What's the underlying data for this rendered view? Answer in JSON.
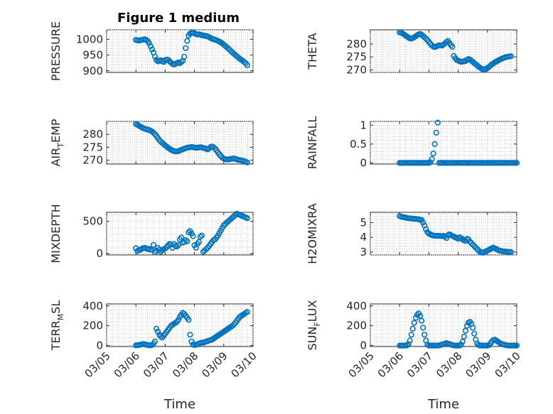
{
  "figure_title": "Figure 1 medium",
  "x_axis": {
    "label": "Time",
    "ticks": [
      "03/05",
      "03/06",
      "03/07",
      "03/08",
      "03/09",
      "03/10"
    ],
    "range": [
      0,
      5
    ]
  },
  "colors": {
    "marker": "#0072BD",
    "axis": "#262626",
    "grid": "#c8c8c8"
  },
  "chart_data": [
    {
      "type": "scatter",
      "title": "Figure 1 medium",
      "ylabel": "PRESSURE",
      "ylim": [
        895,
        1030
      ],
      "yticks": [
        900,
        950,
        1000
      ],
      "xlabel": "",
      "x": [
        1,
        1.05,
        1.1,
        1.15,
        1.2,
        1.25,
        1.3,
        1.35,
        1.4,
        1.45,
        1.5,
        1.55,
        1.6,
        1.65,
        1.7,
        1.75,
        1.8,
        1.85,
        1.9,
        1.95,
        2,
        2.05,
        2.1,
        2.15,
        2.2,
        2.25,
        2.3,
        2.35,
        2.4,
        2.45,
        2.5,
        2.55,
        2.6,
        2.65,
        2.7,
        2.75,
        2.8,
        2.85,
        2.9,
        2.95,
        3,
        3.05,
        3.1,
        3.15,
        3.2,
        3.25,
        3.3,
        3.35,
        3.4,
        3.45,
        3.5,
        3.55,
        3.6,
        3.65,
        3.7,
        3.75,
        3.8,
        3.85,
        3.9,
        3.95,
        4,
        4.05,
        4.1,
        4.15,
        4.2,
        4.25,
        4.3,
        4.35,
        4.4,
        4.45,
        4.5,
        4.55,
        4.6,
        4.65,
        4.7,
        4.75,
        4.8
      ],
      "values": [
        998,
        997,
        996,
        997,
        998,
        999,
        1000,
        998,
        995,
        988,
        978,
        968,
        958,
        945,
        935,
        930,
        932,
        934,
        930,
        928,
        934,
        936,
        935,
        930,
        926,
        922,
        920,
        922,
        925,
        927,
        924,
        928,
        932,
        945,
        972,
        995,
        1012,
        1018,
        1020,
        1021,
        1019,
        1017,
        1015,
        1016,
        1015,
        1013,
        1012,
        1011,
        1010,
        1009,
        1007,
        1004,
        1002,
        1000,
        999,
        997,
        995,
        993,
        990,
        987,
        983,
        979,
        975,
        971,
        967,
        962,
        958,
        954,
        950,
        946,
        942,
        938,
        935,
        932,
        928,
        924,
        918
      ]
    },
    {
      "type": "scatter",
      "ylabel": "THETA",
      "ylim": [
        269,
        285.5
      ],
      "yticks": [
        270,
        275,
        280
      ],
      "xlabel": "",
      "x": [
        1,
        1.05,
        1.1,
        1.15,
        1.2,
        1.25,
        1.3,
        1.35,
        1.4,
        1.45,
        1.5,
        1.55,
        1.6,
        1.65,
        1.7,
        1.75,
        1.8,
        1.85,
        1.9,
        1.95,
        2,
        2.05,
        2.1,
        2.15,
        2.2,
        2.25,
        2.3,
        2.35,
        2.4,
        2.45,
        2.5,
        2.55,
        2.6,
        2.65,
        2.7,
        2.75,
        2.8,
        2.85,
        2.9,
        2.95,
        3,
        3.05,
        3.1,
        3.15,
        3.2,
        3.25,
        3.3,
        3.35,
        3.4,
        3.45,
        3.5,
        3.55,
        3.6,
        3.65,
        3.7,
        3.75,
        3.8,
        3.85,
        3.9,
        3.95,
        4,
        4.05,
        4.1,
        4.15,
        4.2,
        4.25,
        4.3,
        4.35,
        4.4,
        4.45,
        4.5,
        4.55,
        4.6,
        4.65,
        4.7,
        4.75,
        4.8
      ],
      "values": [
        284.5,
        284.4,
        284.1,
        283.7,
        283.3,
        282.9,
        282.5,
        282.2,
        282.1,
        282.3,
        282.6,
        283.0,
        283.4,
        283.7,
        283.9,
        283.6,
        283.1,
        282.6,
        282.1,
        281.5,
        280.8,
        280.1,
        279.5,
        279.0,
        278.8,
        279.0,
        279.3,
        279.5,
        279.5,
        279.4,
        279.8,
        280.3,
        280.8,
        281.2,
        280.4,
        279.6,
        278.9,
        275.4,
        274.5,
        273.8,
        273.6,
        273.3,
        273.1,
        273.2,
        273.3,
        273.4,
        273.9,
        274.2,
        274.0,
        273.6,
        273.1,
        272.6,
        272.2,
        271.7,
        271.2,
        270.8,
        270.4,
        270.2,
        270.2,
        270.4,
        270.7,
        271.1,
        271.6,
        272.1,
        272.5,
        272.9,
        273.2,
        273.5,
        273.8,
        274.1,
        274.4,
        274.6,
        274.8,
        275.0,
        275.1,
        275.2,
        275.3
      ]
    },
    {
      "type": "scatter",
      "ylabel": "AIR_TEMP",
      "ylim": [
        268.5,
        285
      ],
      "yticks": [
        270,
        275,
        280
      ],
      "xlabel": "",
      "x": [
        1,
        1.05,
        1.1,
        1.15,
        1.2,
        1.25,
        1.3,
        1.35,
        1.4,
        1.45,
        1.5,
        1.55,
        1.6,
        1.65,
        1.7,
        1.75,
        1.8,
        1.85,
        1.9,
        1.95,
        2,
        2.05,
        2.1,
        2.15,
        2.2,
        2.25,
        2.3,
        2.35,
        2.4,
        2.45,
        2.5,
        2.55,
        2.6,
        2.65,
        2.7,
        2.75,
        2.8,
        2.85,
        2.9,
        2.95,
        3,
        3.05,
        3.1,
        3.15,
        3.2,
        3.25,
        3.3,
        3.35,
        3.4,
        3.45,
        3.5,
        3.55,
        3.6,
        3.65,
        3.7,
        3.75,
        3.8,
        3.85,
        3.9,
        3.95,
        4,
        4.05,
        4.1,
        4.15,
        4.2,
        4.25,
        4.3,
        4.35,
        4.4,
        4.45,
        4.5,
        4.55,
        4.6,
        4.65,
        4.7,
        4.75,
        4.8
      ],
      "values": [
        284.0,
        283.7,
        283.4,
        283.0,
        282.7,
        282.4,
        282.2,
        282.0,
        281.8,
        281.7,
        281.4,
        281.1,
        280.6,
        280.1,
        279.4,
        278.6,
        277.8,
        277.2,
        276.7,
        276.2,
        275.7,
        275.3,
        274.8,
        274.4,
        274.0,
        273.7,
        273.5,
        273.4,
        273.4,
        273.5,
        273.7,
        274.0,
        274.2,
        274.4,
        274.6,
        274.8,
        274.9,
        275.0,
        275.1,
        275.0,
        274.9,
        274.8,
        274.8,
        274.9,
        275.0,
        274.9,
        274.7,
        274.6,
        274.4,
        274.2,
        274.6,
        275.1,
        275.3,
        275.0,
        274.5,
        273.8,
        273.0,
        272.3,
        271.6,
        271.0,
        270.6,
        270.4,
        270.3,
        270.3,
        270.4,
        270.5,
        270.6,
        270.6,
        270.5,
        270.3,
        270.1,
        270.0,
        269.9,
        269.8,
        269.6,
        269.4,
        269.1
      ]
    },
    {
      "type": "scatter",
      "ylabel": "RAINFALL",
      "ylim": [
        -0.03,
        1.1
      ],
      "yticks": [
        0,
        0.5,
        1
      ],
      "xlabel": "",
      "x": [
        1,
        1.05,
        1.1,
        1.15,
        1.2,
        1.25,
        1.3,
        1.35,
        1.4,
        1.45,
        1.5,
        1.55,
        1.6,
        1.65,
        1.7,
        1.75,
        1.8,
        1.85,
        1.9,
        1.95,
        2,
        2.05,
        2.1,
        2.15,
        2.2,
        2.25,
        2.3,
        2.35,
        2.4,
        2.45,
        2.5,
        2.55,
        2.6,
        2.65,
        2.7,
        2.75,
        2.8,
        2.85,
        2.9,
        2.95,
        3,
        3.05,
        3.1,
        3.15,
        3.2,
        3.25,
        3.3,
        3.35,
        3.4,
        3.45,
        3.5,
        3.55,
        3.6,
        3.65,
        3.7,
        3.75,
        3.8,
        3.85,
        3.9,
        3.95,
        4,
        4.05,
        4.1,
        4.15,
        4.2,
        4.25,
        4.3,
        4.35,
        4.4,
        4.45,
        4.5,
        4.55,
        4.6,
        4.65,
        4.7,
        4.75,
        4.8,
        4.85,
        4.9,
        4.95,
        5
      ],
      "values": [
        0,
        0,
        0,
        0,
        0,
        0,
        0,
        0,
        0,
        0,
        0,
        0,
        0,
        0,
        0,
        0,
        0,
        0,
        0,
        0,
        0,
        0.02,
        0.1,
        0.25,
        0.5,
        0.8,
        1.07,
        0,
        0,
        0,
        0,
        0,
        0,
        0,
        0,
        0,
        0,
        0,
        0,
        0,
        0,
        0,
        0,
        0,
        0,
        0,
        0,
        0,
        0,
        0,
        0,
        0,
        0,
        0,
        0,
        0,
        0,
        0,
        0,
        0,
        0,
        0,
        0,
        0,
        0,
        0,
        0,
        0,
        0,
        0,
        0,
        0,
        0,
        0,
        0,
        0,
        0,
        0,
        0,
        0,
        0
      ]
    },
    {
      "type": "scatter",
      "ylabel": "MIXDEPTH",
      "ylim": [
        -20,
        640
      ],
      "yticks": [
        0,
        500
      ],
      "xlabel": "",
      "x": [
        1,
        1.05,
        1.1,
        1.15,
        1.2,
        1.25,
        1.3,
        1.35,
        1.4,
        1.45,
        1.5,
        1.55,
        1.6,
        1.65,
        1.7,
        1.75,
        1.8,
        1.85,
        1.9,
        1.95,
        2,
        2.05,
        2.1,
        2.15,
        2.2,
        2.25,
        2.3,
        2.35,
        2.4,
        2.45,
        2.5,
        2.55,
        2.6,
        2.65,
        2.7,
        2.75,
        2.8,
        2.85,
        2.9,
        2.95,
        3,
        3.05,
        3.1,
        3.15,
        3.2,
        3.25,
        3.3,
        3.35,
        3.4,
        3.45,
        3.5,
        3.55,
        3.6,
        3.65,
        3.7,
        3.75,
        3.8,
        3.85,
        3.9,
        3.95,
        4,
        4.05,
        4.1,
        4.15,
        4.2,
        4.25,
        4.3,
        4.35,
        4.4,
        4.45,
        4.5,
        4.55,
        4.6,
        4.65,
        4.7,
        4.75,
        4.8
      ],
      "values": [
        85,
        40,
        55,
        60,
        75,
        85,
        90,
        80,
        70,
        75,
        60,
        60,
        135,
        20,
        45,
        90,
        60,
        30,
        50,
        70,
        80,
        100,
        130,
        150,
        140,
        90,
        150,
        120,
        110,
        130,
        220,
        250,
        170,
        180,
        210,
        190,
        330,
        350,
        310,
        270,
        130,
        90,
        150,
        180,
        260,
        280,
        30,
        50,
        70,
        90,
        120,
        150,
        180,
        210,
        220,
        250,
        280,
        320,
        360,
        400,
        440,
        460,
        480,
        500,
        520,
        540,
        560,
        580,
        600,
        620,
        610,
        600,
        590,
        580,
        570,
        560,
        550
      ]
    },
    {
      "type": "scatter",
      "ylabel": "H2OMIXRA",
      "ylim": [
        2.8,
        5.7
      ],
      "yticks": [
        3,
        4,
        5
      ],
      "xlabel": "",
      "x": [
        1,
        1.05,
        1.1,
        1.15,
        1.2,
        1.25,
        1.3,
        1.35,
        1.4,
        1.45,
        1.5,
        1.55,
        1.6,
        1.65,
        1.7,
        1.75,
        1.8,
        1.85,
        1.9,
        1.95,
        2,
        2.05,
        2.1,
        2.15,
        2.2,
        2.25,
        2.3,
        2.35,
        2.4,
        2.45,
        2.5,
        2.55,
        2.6,
        2.65,
        2.7,
        2.75,
        2.8,
        2.85,
        2.9,
        2.95,
        3,
        3.05,
        3.1,
        3.15,
        3.2,
        3.25,
        3.3,
        3.35,
        3.4,
        3.45,
        3.5,
        3.55,
        3.6,
        3.65,
        3.7,
        3.75,
        3.8,
        3.85,
        3.9,
        3.95,
        4,
        4.05,
        4.1,
        4.15,
        4.2,
        4.25,
        4.3,
        4.35,
        4.4,
        4.45,
        4.5,
        4.55,
        4.6,
        4.65,
        4.7,
        4.75,
        4.8
      ],
      "values": [
        5.45,
        5.4,
        5.38,
        5.36,
        5.34,
        5.32,
        5.3,
        5.29,
        5.28,
        5.27,
        5.26,
        5.25,
        5.24,
        5.22,
        5.2,
        5.18,
        5.0,
        4.8,
        4.55,
        4.35,
        4.25,
        4.2,
        4.15,
        4.12,
        4.1,
        4.1,
        4.1,
        4.1,
        4.09,
        4.08,
        4.1,
        4.05,
        3.95,
        4.15,
        4.2,
        4.15,
        4.1,
        4.05,
        4.0,
        3.95,
        3.9,
        4.0,
        3.95,
        3.85,
        3.8,
        3.75,
        3.9,
        3.85,
        3.7,
        3.6,
        3.5,
        3.4,
        3.3,
        3.2,
        3.1,
        3.0,
        2.97,
        2.95,
        3.0,
        3.05,
        3.1,
        3.15,
        3.2,
        3.25,
        3.3,
        3.25,
        3.2,
        3.15,
        3.1,
        3.08,
        3.05,
        3.04,
        3.03,
        3.02,
        3.01,
        3.0,
        3.0
      ]
    },
    {
      "type": "scatter",
      "ylabel": "TERR_MSL",
      "ylim": [
        -10,
        420
      ],
      "yticks": [
        0,
        200,
        400
      ],
      "xlabel": "Time",
      "x": [
        1,
        1.05,
        1.1,
        1.15,
        1.2,
        1.25,
        1.3,
        1.35,
        1.4,
        1.45,
        1.5,
        1.55,
        1.6,
        1.65,
        1.7,
        1.75,
        1.8,
        1.85,
        1.9,
        1.95,
        2,
        2.05,
        2.1,
        2.15,
        2.2,
        2.25,
        2.3,
        2.35,
        2.4,
        2.45,
        2.5,
        2.55,
        2.6,
        2.65,
        2.7,
        2.75,
        2.8,
        2.85,
        2.9,
        2.95,
        3,
        3.05,
        3.1,
        3.15,
        3.2,
        3.25,
        3.3,
        3.35,
        3.4,
        3.45,
        3.5,
        3.55,
        3.6,
        3.65,
        3.7,
        3.75,
        3.8,
        3.85,
        3.9,
        3.95,
        4,
        4.05,
        4.1,
        4.15,
        4.2,
        4.25,
        4.3,
        4.35,
        4.4,
        4.45,
        4.5,
        4.55,
        4.6,
        4.65,
        4.7,
        4.75,
        4.8
      ],
      "values": [
        2,
        3,
        5,
        8,
        12,
        15,
        12,
        8,
        5,
        3,
        2,
        5,
        20,
        40,
        170,
        140,
        110,
        90,
        80,
        100,
        120,
        140,
        160,
        180,
        200,
        210,
        220,
        230,
        240,
        260,
        290,
        310,
        330,
        320,
        300,
        280,
        260,
        110,
        40,
        10,
        5,
        8,
        12,
        20,
        25,
        30,
        28,
        35,
        40,
        45,
        50,
        55,
        60,
        70,
        80,
        90,
        100,
        110,
        120,
        130,
        140,
        150,
        160,
        170,
        180,
        190,
        200,
        215,
        230,
        250,
        270,
        290,
        300,
        310,
        320,
        330,
        340
      ]
    },
    {
      "type": "scatter",
      "ylabel": "SUN_FLUX",
      "ylim": [
        -10,
        420
      ],
      "yticks": [
        0,
        200,
        400
      ],
      "xlabel": "Time",
      "x": [
        1,
        1.05,
        1.1,
        1.15,
        1.2,
        1.25,
        1.3,
        1.35,
        1.4,
        1.45,
        1.5,
        1.55,
        1.6,
        1.65,
        1.7,
        1.75,
        1.8,
        1.85,
        1.9,
        1.95,
        2,
        2.05,
        2.1,
        2.15,
        2.2,
        2.25,
        2.3,
        2.35,
        2.4,
        2.45,
        2.5,
        2.55,
        2.6,
        2.65,
        2.7,
        2.75,
        2.8,
        2.85,
        2.9,
        2.95,
        3,
        3.05,
        3.1,
        3.15,
        3.2,
        3.25,
        3.3,
        3.35,
        3.4,
        3.45,
        3.5,
        3.55,
        3.6,
        3.65,
        3.7,
        3.75,
        3.8,
        3.85,
        3.9,
        3.95,
        4,
        4.05,
        4.1,
        4.15,
        4.2,
        4.25,
        4.3,
        4.35,
        4.4,
        4.45,
        4.5,
        4.55,
        4.6,
        4.65,
        4.7,
        4.75,
        4.8,
        4.85,
        4.9,
        4.95,
        5
      ],
      "values": [
        0,
        0,
        0,
        0,
        0,
        2,
        15,
        50,
        110,
        170,
        230,
        280,
        310,
        325,
        300,
        250,
        180,
        110,
        50,
        10,
        0,
        0,
        0,
        0,
        0,
        0,
        0,
        2,
        5,
        10,
        15,
        20,
        25,
        20,
        15,
        10,
        5,
        2,
        0,
        0,
        0,
        0,
        10,
        40,
        90,
        150,
        200,
        230,
        240,
        220,
        180,
        120,
        60,
        20,
        5,
        0,
        0,
        0,
        0,
        0,
        0,
        5,
        20,
        40,
        55,
        60,
        50,
        40,
        30,
        20,
        15,
        10,
        5,
        3,
        1,
        0,
        0,
        0,
        0,
        0,
        0
      ]
    }
  ]
}
